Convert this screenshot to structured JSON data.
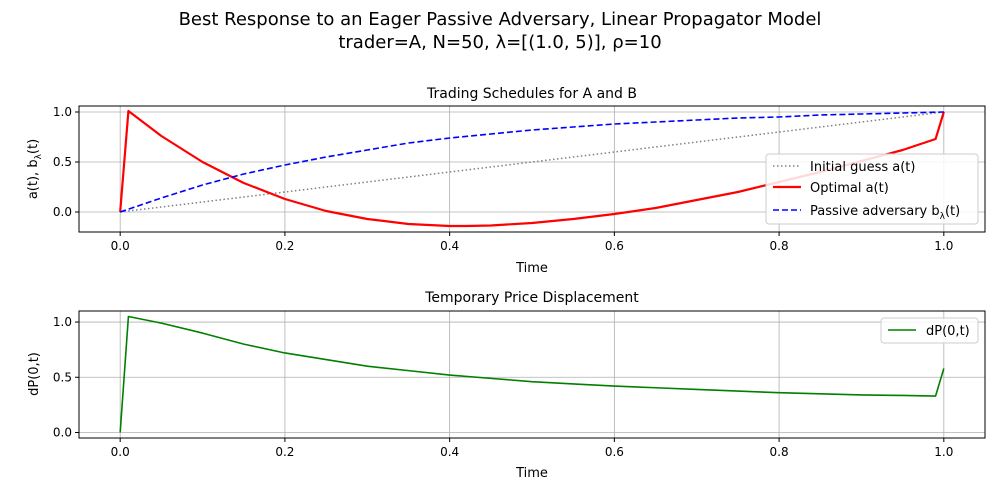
{
  "figure": {
    "suptitle_line1": "Best Response to an Eager Passive Adversary, Linear Propagator Model",
    "suptitle_line2": "trader=A, N=50, λ=[(1.0, 5)], ρ=10"
  },
  "chart_data": [
    {
      "type": "line",
      "title": "Trading Schedules for A and B",
      "xlabel": "Time",
      "ylabel_main": "a(t), b",
      "ylabel_sub": "λ",
      "ylabel_tail": "(t)",
      "xlim": [
        -0.05,
        1.05
      ],
      "ylim": [
        -0.2,
        1.06
      ],
      "xticks": [
        0.0,
        0.2,
        0.4,
        0.6,
        0.8,
        1.0
      ],
      "xtick_labels": [
        "0.0",
        "0.2",
        "0.4",
        "0.6",
        "0.8",
        "1.0"
      ],
      "yticks": [
        0.0,
        0.5,
        1.0
      ],
      "ytick_labels": [
        "0.0",
        "0.5",
        "1.0"
      ],
      "grid": true,
      "legend_position": "center-right",
      "series": [
        {
          "name": "Initial guess a(t)",
          "color": "#808080",
          "style": "dotted",
          "x": [
            0.0,
            1.0
          ],
          "y": [
            0.0,
            1.0
          ]
        },
        {
          "name": "Optimal a(t)",
          "color": "#ff0000",
          "style": "solid",
          "x": [
            0.0,
            0.01,
            0.05,
            0.1,
            0.15,
            0.2,
            0.25,
            0.3,
            0.35,
            0.4,
            0.42,
            0.45,
            0.5,
            0.55,
            0.6,
            0.65,
            0.7,
            0.75,
            0.8,
            0.85,
            0.9,
            0.95,
            0.99,
            1.0
          ],
          "y": [
            0.0,
            1.01,
            0.76,
            0.5,
            0.29,
            0.13,
            0.01,
            -0.07,
            -0.12,
            -0.14,
            -0.14,
            -0.135,
            -0.11,
            -0.07,
            -0.02,
            0.04,
            0.12,
            0.2,
            0.3,
            0.4,
            0.51,
            0.62,
            0.73,
            1.0
          ],
          "legend_label_main": "Optimal a(t)"
        },
        {
          "name": "Passive adversary b",
          "name_sub": "λ",
          "name_tail": "(t)",
          "color": "#0000ff",
          "style": "dashed",
          "x": [
            0.0,
            0.05,
            0.1,
            0.15,
            0.2,
            0.25,
            0.3,
            0.35,
            0.4,
            0.45,
            0.5,
            0.55,
            0.6,
            0.65,
            0.7,
            0.75,
            0.8,
            0.85,
            0.9,
            0.95,
            1.0
          ],
          "y": [
            0.0,
            0.14,
            0.27,
            0.38,
            0.47,
            0.55,
            0.62,
            0.69,
            0.74,
            0.78,
            0.82,
            0.85,
            0.88,
            0.9,
            0.92,
            0.94,
            0.95,
            0.97,
            0.98,
            0.99,
            1.0
          ]
        }
      ]
    },
    {
      "type": "line",
      "title": "Temporary Price Displacement",
      "xlabel": "Time",
      "ylabel": "dP(0,t)",
      "xlim": [
        -0.05,
        1.05
      ],
      "ylim": [
        -0.05,
        1.1
      ],
      "xticks": [
        0.0,
        0.2,
        0.4,
        0.6,
        0.8,
        1.0
      ],
      "xtick_labels": [
        "0.0",
        "0.2",
        "0.4",
        "0.6",
        "0.8",
        "1.0"
      ],
      "yticks": [
        0.0,
        0.5,
        1.0
      ],
      "ytick_labels": [
        "0.0",
        "0.5",
        "1.0"
      ],
      "grid": true,
      "legend_position": "top-right",
      "series": [
        {
          "name": "dP(0,t)",
          "color": "#008000",
          "style": "solid",
          "x": [
            0.0,
            0.01,
            0.05,
            0.1,
            0.15,
            0.2,
            0.25,
            0.3,
            0.35,
            0.4,
            0.45,
            0.5,
            0.55,
            0.6,
            0.65,
            0.7,
            0.75,
            0.8,
            0.85,
            0.9,
            0.95,
            0.99,
            1.0
          ],
          "y": [
            0.0,
            1.05,
            0.99,
            0.9,
            0.8,
            0.72,
            0.66,
            0.6,
            0.56,
            0.52,
            0.49,
            0.46,
            0.44,
            0.42,
            0.405,
            0.39,
            0.375,
            0.36,
            0.35,
            0.34,
            0.335,
            0.33,
            0.58
          ]
        }
      ]
    }
  ]
}
